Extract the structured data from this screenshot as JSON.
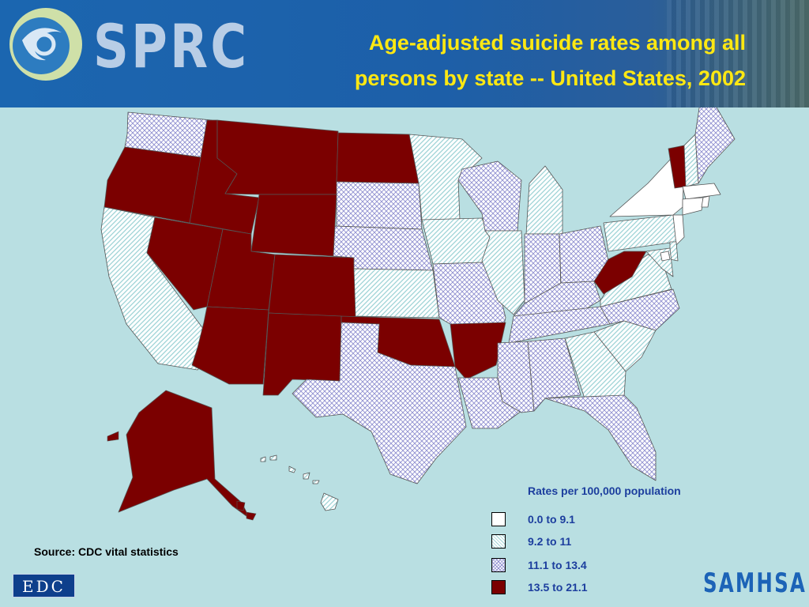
{
  "header": {
    "logo_text": "SPRC",
    "title_line1": "Age-adjusted suicide rates among all",
    "title_line2": "persons by state -- United States, 2002"
  },
  "legend": {
    "title": "Rates per 100,000 population",
    "items": [
      {
        "label": "0.0 to 9.1",
        "class": "none"
      },
      {
        "label": "9.2 to 11",
        "class": "hatch"
      },
      {
        "label": "11.1 to 13.4",
        "class": "cross"
      },
      {
        "label": "13.5 to 21.1",
        "class": "solid"
      }
    ]
  },
  "colors": {
    "background": "#b9dfe2",
    "solid": "#7b0000",
    "hatch": "#9ed3d6",
    "cross": "#8f8fd0",
    "none": "#ffffff",
    "title": "#ffe812",
    "legend_text": "#1c3e9e"
  },
  "states": {
    "WA": "cross",
    "OR": "solid",
    "CA": "hatch",
    "ID": "solid",
    "NV": "solid",
    "MT": "solid",
    "WY": "solid",
    "UT": "solid",
    "AZ": "solid",
    "CO": "solid",
    "NM": "solid",
    "ND": "solid",
    "SD": "cross",
    "NE": "cross",
    "KS": "hatch",
    "OK": "solid",
    "TX": "cross",
    "MN": "hatch",
    "IA": "hatch",
    "MO": "cross",
    "AR": "solid",
    "LA": "cross",
    "WI": "cross",
    "IL": "hatch",
    "MI": "hatch",
    "IN": "cross",
    "OH": "cross",
    "KY": "cross",
    "TN": "cross",
    "MS": "cross",
    "AL": "cross",
    "GA": "hatch",
    "FL": "cross",
    "SC": "hatch",
    "NC": "cross",
    "VA": "hatch",
    "WV": "solid",
    "PA": "hatch",
    "NY": "none",
    "VT": "solid",
    "NH": "hatch",
    "ME": "cross",
    "MA": "none",
    "CT": "none",
    "RI": "none",
    "NJ": "none",
    "DE": "hatch",
    "MD": "hatch",
    "DC": "none",
    "AK": "solid",
    "HI": "hatch"
  },
  "source": "Source: CDC vital statistics",
  "footer": {
    "edc_logo": "EDC",
    "samhsa_logo": "SAMHSA"
  }
}
